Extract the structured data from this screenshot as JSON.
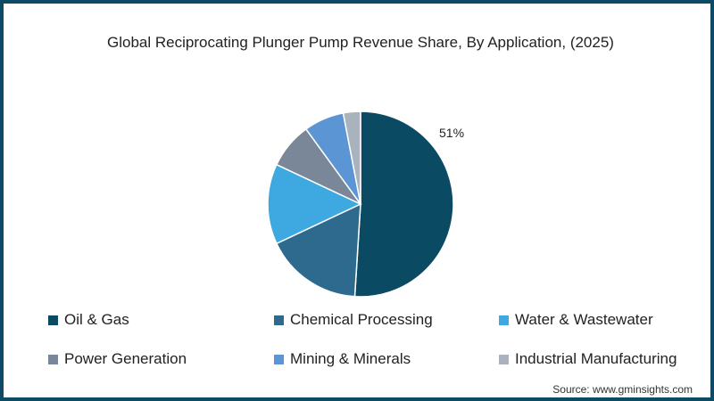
{
  "chart_data": {
    "type": "pie",
    "title": "Global Reciprocating Plunger Pump Revenue Share, By Application, (2025)",
    "categories": [
      "Oil & Gas",
      "Chemical Processing",
      "Water & Wastewater",
      "Power Generation",
      "Mining & Minerals",
      "Industrial Manufacturing"
    ],
    "values": [
      51,
      17,
      14,
      8,
      7,
      3
    ],
    "colors": [
      "#0b4a63",
      "#2e6a8e",
      "#3ea9e0",
      "#7a8798",
      "#5b95d3",
      "#a9b3bd"
    ],
    "data_labels": [
      {
        "category": "Oil & Gas",
        "label": "51%"
      }
    ],
    "legend_position": "bottom",
    "source": "Source: www.gminsights.com"
  },
  "title": "Global Reciprocating Plunger Pump Revenue Share, By Application, (2025)",
  "label_oil": "51%",
  "legend": [
    {
      "label": "Oil & Gas",
      "color": "#0b4a63"
    },
    {
      "label": "Chemical Processing",
      "color": "#2e6a8e"
    },
    {
      "label": "Water & Wastewater",
      "color": "#3ea9e0"
    },
    {
      "label": "Power Generation",
      "color": "#7a8798"
    },
    {
      "label": "Mining & Minerals",
      "color": "#5b95d3"
    },
    {
      "label": "Industrial Manufacturing",
      "color": "#a9b3bd"
    }
  ],
  "source": "Source: www.gminsights.com"
}
